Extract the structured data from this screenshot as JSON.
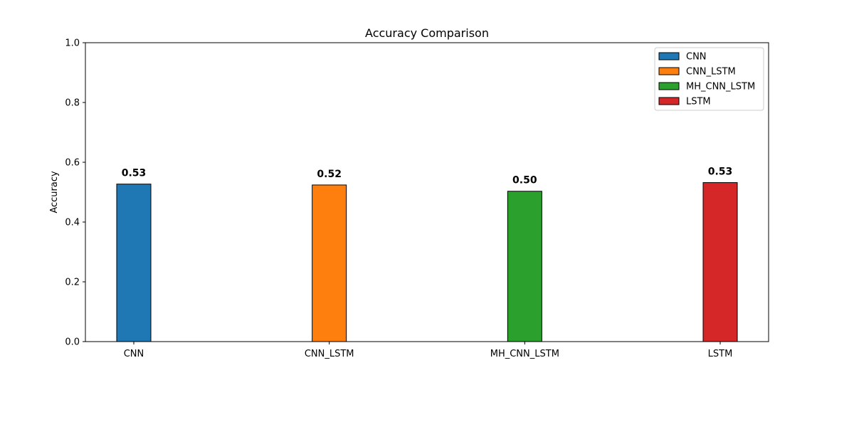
{
  "chart_data": {
    "type": "bar",
    "title": "Accuracy Comparison",
    "xlabel": "",
    "ylabel": "Accuracy",
    "ylim": [
      0,
      1.0
    ],
    "yticks": [
      "0.0",
      "0.2",
      "0.4",
      "0.6",
      "0.8",
      "1.0"
    ],
    "categories": [
      "CNN",
      "CNN_LSTM",
      "MH_CNN_LSTM",
      "LSTM"
    ],
    "values": [
      0.527,
      0.524,
      0.503,
      0.532
    ],
    "value_labels": [
      "0.53",
      "0.52",
      "0.50",
      "0.53"
    ],
    "colors": [
      "#1f77b4",
      "#ff7f0e",
      "#2ca02c",
      "#d62728"
    ],
    "bar_edge_color": "#000000",
    "grid": false,
    "legend": {
      "placement": "top-right",
      "entries": [
        "CNN",
        "CNN_LSTM",
        "MH_CNN_LSTM",
        "LSTM"
      ]
    }
  }
}
